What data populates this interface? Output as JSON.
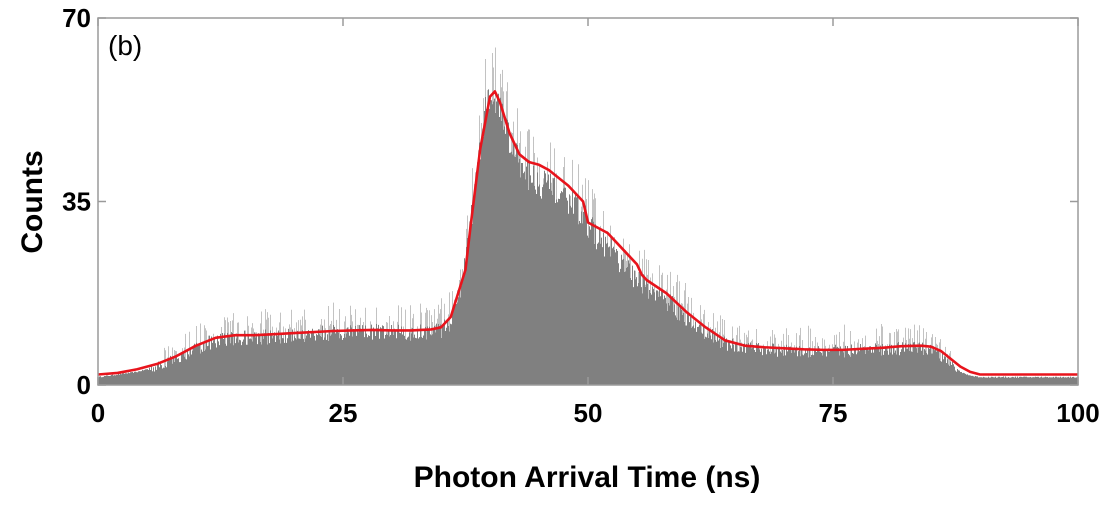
{
  "chart_data": {
    "type": "bar",
    "panel_label": "(b)",
    "xlabel": "Photon Arrival Time (ns)",
    "ylabel": "Counts",
    "xlim": [
      0,
      100
    ],
    "ylim": [
      0,
      70
    ],
    "xticks": [
      0,
      25,
      50,
      75,
      100
    ],
    "yticks": [
      0,
      35,
      70
    ],
    "grid": false,
    "colors": {
      "histogram": "#808080",
      "noise": "#b4b4b4",
      "fit": "#e8141c",
      "axes": "#9a9a9a"
    },
    "series": [
      {
        "kind": "histogram",
        "x": [
          0,
          2,
          4,
          6,
          8,
          10,
          12,
          14,
          16,
          18,
          20,
          22,
          24,
          26,
          28,
          30,
          32,
          34,
          35,
          36,
          37,
          38,
          39,
          40,
          41,
          42,
          43,
          44,
          45,
          46,
          47,
          48,
          49,
          50,
          51,
          52,
          53,
          54,
          55,
          56,
          58,
          60,
          62,
          64,
          66,
          68,
          70,
          72,
          74,
          76,
          78,
          80,
          82,
          84,
          85,
          86,
          87,
          88,
          89,
          90,
          92,
          95,
          100
        ],
        "values": [
          1.5,
          2,
          2.5,
          3.5,
          5,
          7,
          8.5,
          9,
          9,
          9.2,
          9.5,
          9.8,
          10,
          10,
          10.2,
          10,
          10,
          10.2,
          10.5,
          12,
          18,
          30,
          45,
          57,
          53,
          46,
          42,
          40,
          39,
          37.5,
          36,
          35,
          33.5,
          31,
          28,
          26.5,
          24,
          22,
          20,
          18.5,
          16,
          13,
          10,
          8,
          7,
          6.8,
          6.6,
          6.5,
          6.4,
          6.5,
          6.6,
          6.8,
          7,
          7,
          6.8,
          5.5,
          4,
          2.5,
          1.8,
          1.5,
          1.5,
          1.5,
          1.5
        ]
      },
      {
        "kind": "fit",
        "x": [
          0,
          2,
          4,
          6,
          8,
          10,
          12,
          14,
          16,
          18,
          20,
          22,
          24,
          26,
          28,
          30,
          32,
          34,
          35,
          36,
          37,
          37.5,
          38,
          39,
          40,
          40.5,
          41,
          42,
          43,
          44,
          45,
          46,
          47,
          48,
          49,
          49.5,
          50,
          51,
          52,
          53,
          54,
          55,
          55.5,
          56,
          58,
          60,
          62,
          64,
          66,
          68,
          70,
          72,
          74,
          76,
          78,
          80,
          82,
          84,
          85,
          86,
          87,
          88,
          89,
          90,
          92,
          95,
          100
        ],
        "values": [
          2,
          2.3,
          3,
          4,
          5.5,
          7.5,
          9,
          9.5,
          9.5,
          9.7,
          9.9,
          10.1,
          10.3,
          10.4,
          10.5,
          10.4,
          10.4,
          10.6,
          11,
          13,
          19,
          22,
          30,
          45,
          55,
          56,
          54,
          48,
          44,
          42.5,
          42,
          41,
          39.5,
          38,
          36,
          35,
          31,
          30,
          29,
          27,
          25,
          23,
          21,
          20,
          17.5,
          14,
          11,
          8.5,
          7.5,
          7.2,
          7,
          6.8,
          6.7,
          6.7,
          6.9,
          7.1,
          7.4,
          7.5,
          7.3,
          6.5,
          5,
          3.5,
          2.5,
          2,
          2,
          2,
          2
        ]
      }
    ]
  }
}
